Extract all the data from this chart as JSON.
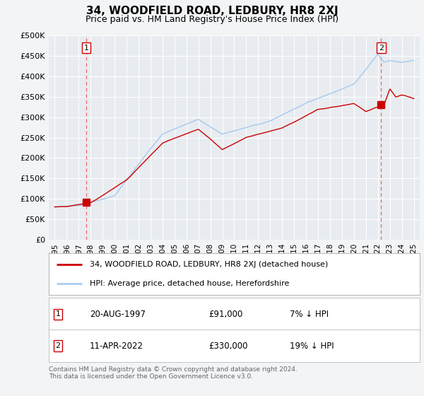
{
  "title": "34, WOODFIELD ROAD, LEDBURY, HR8 2XJ",
  "subtitle": "Price paid vs. HM Land Registry's House Price Index (HPI)",
  "ylabel_ticks": [
    "£0",
    "£50K",
    "£100K",
    "£150K",
    "£200K",
    "£250K",
    "£300K",
    "£350K",
    "£400K",
    "£450K",
    "£500K"
  ],
  "ytick_values": [
    0,
    50000,
    100000,
    150000,
    200000,
    250000,
    300000,
    350000,
    400000,
    450000,
    500000
  ],
  "xlim": [
    1994.5,
    2025.5
  ],
  "ylim": [
    0,
    500000
  ],
  "xticks": [
    1995,
    1996,
    1997,
    1998,
    1999,
    2000,
    2001,
    2002,
    2003,
    2004,
    2005,
    2006,
    2007,
    2008,
    2009,
    2010,
    2011,
    2012,
    2013,
    2014,
    2015,
    2016,
    2017,
    2018,
    2019,
    2020,
    2021,
    2022,
    2023,
    2024,
    2025
  ],
  "sale1_x": 1997.64,
  "sale1_y": 91000,
  "sale1_label": "1",
  "sale2_x": 2022.28,
  "sale2_y": 330000,
  "sale2_label": "2",
  "hpi_color": "#aaccee",
  "sale_color": "#cc0000",
  "dashed_color": "#ee6666",
  "background_color": "#f2f4f6",
  "plot_bg_color": "#e8ecf0",
  "legend_label_red": "34, WOODFIELD ROAD, LEDBURY, HR8 2XJ (detached house)",
  "legend_label_blue": "HPI: Average price, detached house, Herefordshire",
  "footer": "Contains HM Land Registry data © Crown copyright and database right 2024.\nThis data is licensed under the Open Government Licence v3.0.",
  "title_fontsize": 11,
  "subtitle_fontsize": 9
}
